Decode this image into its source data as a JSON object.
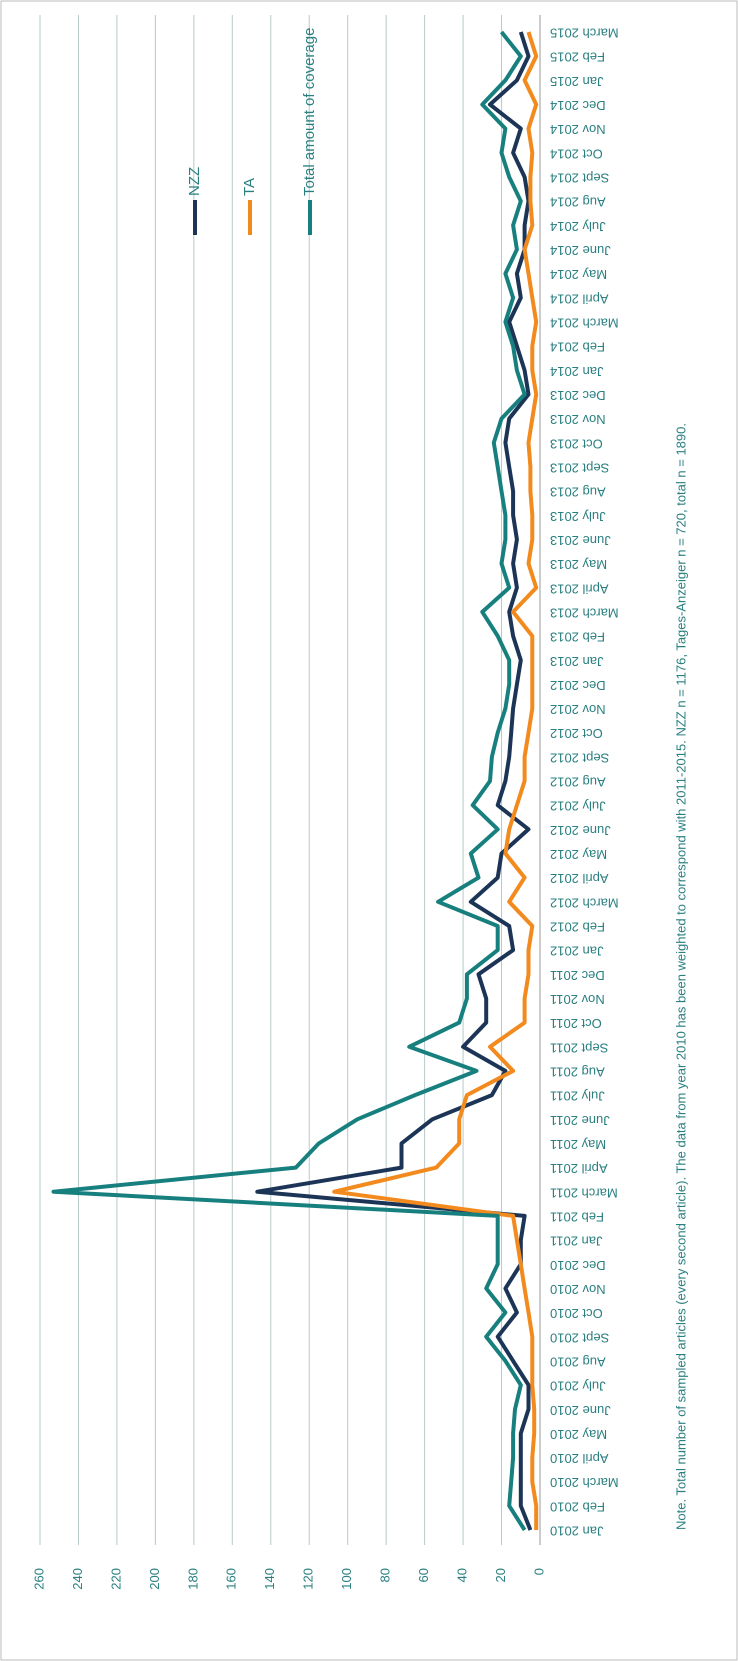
{
  "chart_data": {
    "type": "line",
    "note": "Note. Total number of sampled articles (every second article). The data from year 2010 has been weighted to correspond with 2011-2015. NZZ n = 1176, Tages-Anzeiger n = 720, total n = 1890.",
    "categories": [
      "Jan 2010",
      "Feb 2010",
      "March 2010",
      "April 2010",
      "May 2010",
      "June 2010",
      "July 2010",
      "Aug 2010",
      "Sept 2010",
      "Oct 2010",
      "Nov 2010",
      "Dec 2010",
      "Jan 2011",
      "Feb 2011",
      "March 2011",
      "April 2011",
      "May 2011",
      "June 2011",
      "July 2011",
      "Aug 2011",
      "Sept 2011",
      "Oct 2011",
      "Nov 2011",
      "Dec 2011",
      "Jan 2012",
      "Feb 2012",
      "March 2012",
      "April 2012",
      "May 2012",
      "June 2012",
      "July 2012",
      "Aug 2012",
      "Sept 2012",
      "Oct 2012",
      "Nov 2012",
      "Dec 2012",
      "Jan 2013",
      "Feb 2013",
      "March 2013",
      "April 2013",
      "May 2013",
      "June 2013",
      "July 2013",
      "Aug 2013",
      "Sept 2013",
      "Oct 2013",
      "Nov 2013",
      "Dec 2013",
      "Jan 2014",
      "Feb 2014",
      "March 2014",
      "April 2014",
      "May 2014",
      "June 2014",
      "July 2014",
      "Aug 2014",
      "Sept 2014",
      "Oct 2014",
      "Nov 2014",
      "Dec 2014",
      "Jan 2015",
      "Feb 2015",
      "March 2015"
    ],
    "series": [
      {
        "name": "NZZ",
        "color": "#1c3557",
        "values": [
          5,
          10,
          10,
          10,
          10,
          6,
          6,
          14,
          22,
          12,
          18,
          10,
          10,
          8,
          147,
          72,
          72,
          56,
          25,
          18,
          40,
          28,
          28,
          32,
          14,
          16,
          36,
          22,
          20,
          6,
          22,
          18,
          16,
          15,
          14,
          12,
          10,
          14,
          16,
          12,
          14,
          12,
          14,
          14,
          16,
          18,
          16,
          6,
          8,
          12,
          16,
          10,
          12,
          8,
          8,
          6,
          8,
          14,
          10,
          26,
          12,
          6,
          10
        ]
      },
      {
        "name": "TA",
        "color": "#f28a1e",
        "values": [
          2,
          2,
          4,
          4,
          3,
          3,
          4,
          4,
          4,
          6,
          8,
          10,
          12,
          14,
          107,
          54,
          42,
          42,
          38,
          14,
          26,
          8,
          8,
          6,
          6,
          4,
          16,
          8,
          18,
          16,
          12,
          8,
          8,
          6,
          4,
          4,
          4,
          4,
          14,
          2,
          6,
          4,
          4,
          5,
          5,
          6,
          4,
          2,
          4,
          4,
          2,
          4,
          6,
          8,
          4,
          5,
          5,
          4,
          6,
          2,
          8,
          2,
          6
        ]
      },
      {
        "name": "Total amount of coverage",
        "color": "#17807e",
        "values": [
          8,
          16,
          15,
          14,
          14,
          13,
          10,
          18,
          28,
          18,
          28,
          22,
          22,
          22,
          253,
          127,
          115,
          95,
          65,
          33,
          68,
          42,
          38,
          38,
          22,
          22,
          53,
          32,
          36,
          22,
          35,
          26,
          25,
          22,
          18,
          16,
          16,
          22,
          30,
          16,
          20,
          18,
          18,
          20,
          22,
          24,
          20,
          8,
          12,
          14,
          18,
          14,
          18,
          12,
          14,
          10,
          16,
          20,
          18,
          30,
          18,
          10,
          20
        ]
      }
    ],
    "ylim": [
      0,
      260
    ],
    "yticks": [
      0,
      20,
      40,
      60,
      80,
      100,
      120,
      140,
      160,
      180,
      200,
      220,
      240,
      260
    ],
    "grid": true
  }
}
